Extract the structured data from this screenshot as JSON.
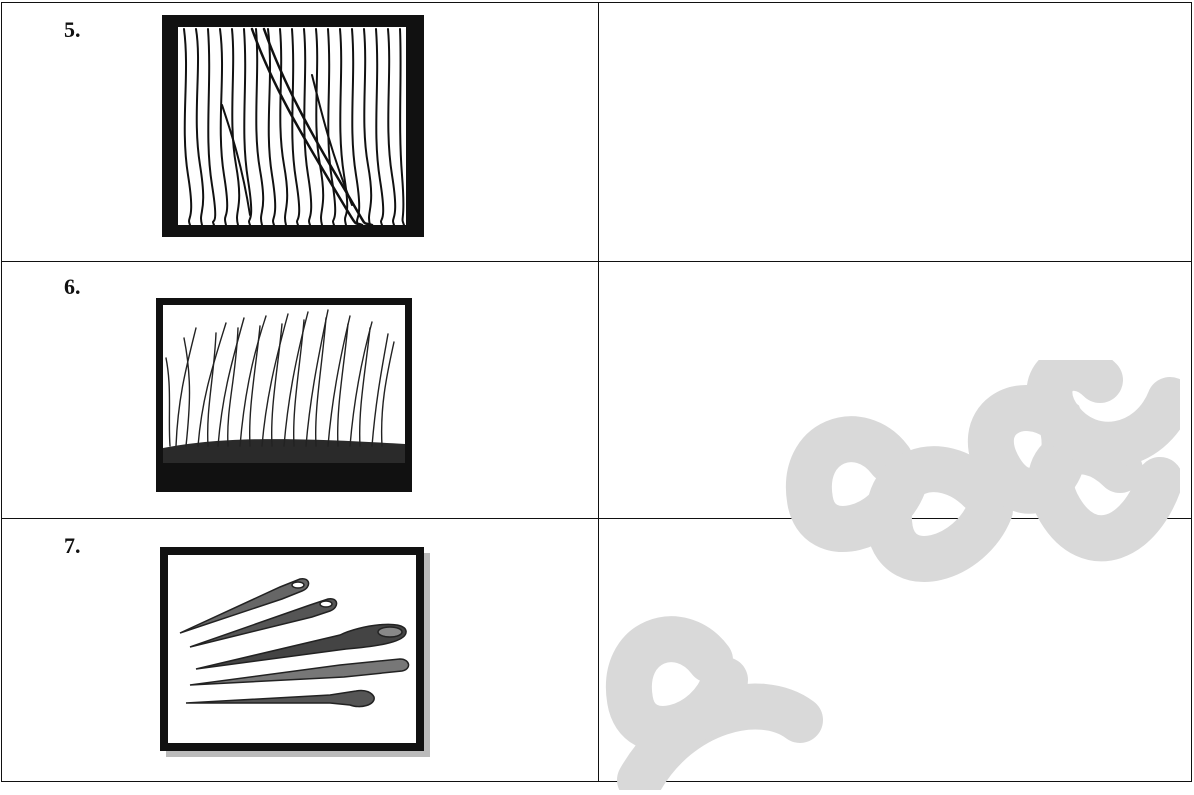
{
  "rows": [
    {
      "number": "5.",
      "picture": "wood-grain-pattern",
      "answer": ""
    },
    {
      "number": "6.",
      "picture": "grass-blades-drawing",
      "answer": ""
    },
    {
      "number": "7.",
      "picture": "awl-tools-drawing",
      "answer": ""
    }
  ],
  "watermark": {
    "text": "ocess",
    "color": "#d9d9d9"
  }
}
